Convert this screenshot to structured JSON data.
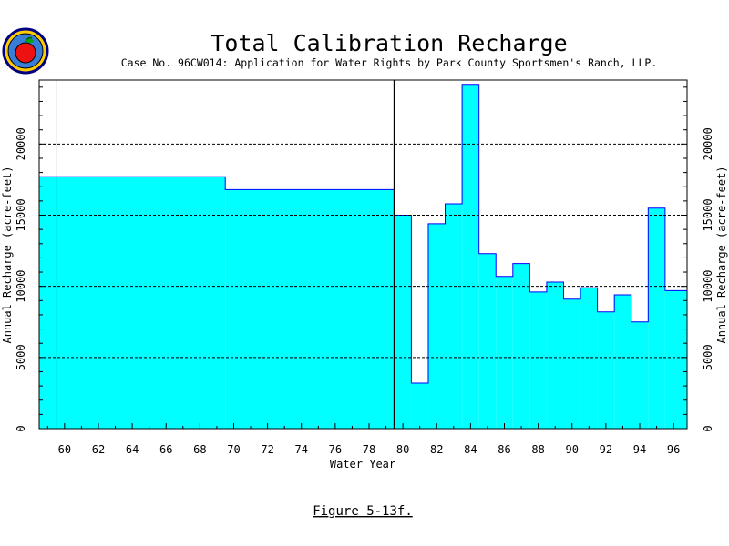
{
  "chart_data": {
    "type": "step-area",
    "title": "Total Calibration Recharge",
    "subtitle": "Case No. 96CW014: Application for Water Rights by Park County Sportsmen's Ranch, LLP.",
    "xlabel": "Water Year",
    "ylabel_left": "Annual Recharge (acre-feet)",
    "ylabel_right": "Annual Recharge (acre-feet)",
    "caption": "Figure 5-13f.",
    "xlim": [
      58.5,
      96.8
    ],
    "ylim": [
      0,
      24500
    ],
    "x_ticks": [
      60,
      62,
      64,
      66,
      68,
      70,
      72,
      74,
      76,
      78,
      80,
      82,
      84,
      86,
      88,
      90,
      92,
      94,
      96
    ],
    "y_ticks": [
      0,
      5000,
      10000,
      15000,
      20000
    ],
    "grid_lines_y": [
      5000,
      10000,
      15000,
      20000
    ],
    "vertical_lines": [
      59.5,
      79.5
    ],
    "fill_color": "#00ffff",
    "outline_color": "#0000ff",
    "steps": [
      {
        "from": 58.5,
        "to": 69.5,
        "value": 17700
      },
      {
        "from": 69.5,
        "to": 79.5,
        "value": 16800
      },
      {
        "from": 79.5,
        "to": 80.5,
        "value": 15000
      },
      {
        "from": 80.5,
        "to": 81.5,
        "value": 3200
      },
      {
        "from": 81.5,
        "to": 82.5,
        "value": 14400
      },
      {
        "from": 82.5,
        "to": 83.5,
        "value": 15800
      },
      {
        "from": 83.5,
        "to": 84.5,
        "value": 24200
      },
      {
        "from": 84.5,
        "to": 85.5,
        "value": 12300
      },
      {
        "from": 85.5,
        "to": 86.5,
        "value": 10700
      },
      {
        "from": 86.5,
        "to": 87.5,
        "value": 11600
      },
      {
        "from": 87.5,
        "to": 88.5,
        "value": 9600
      },
      {
        "from": 88.5,
        "to": 89.5,
        "value": 10300
      },
      {
        "from": 89.5,
        "to": 90.5,
        "value": 9100
      },
      {
        "from": 90.5,
        "to": 91.5,
        "value": 9900
      },
      {
        "from": 91.5,
        "to": 92.5,
        "value": 8200
      },
      {
        "from": 92.5,
        "to": 93.5,
        "value": 9400
      },
      {
        "from": 93.5,
        "to": 94.5,
        "value": 7500
      },
      {
        "from": 94.5,
        "to": 95.5,
        "value": 15500
      },
      {
        "from": 95.5,
        "to": 96.8,
        "value": 9700
      }
    ]
  },
  "logo": {
    "name": "apple-seal-logo"
  }
}
